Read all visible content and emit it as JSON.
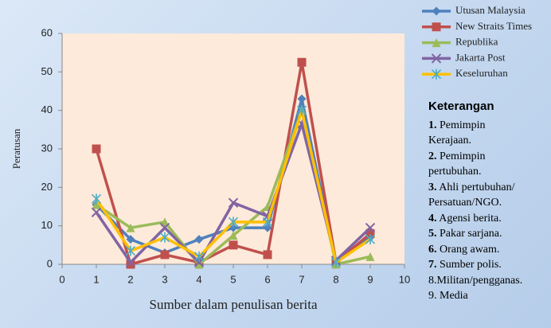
{
  "chart_data": {
    "type": "line",
    "xlabel": "Sumber  dalam penulisan berita",
    "ylabel": "Peratusan",
    "x": [
      1,
      2,
      3,
      4,
      5,
      6,
      7,
      8,
      9
    ],
    "xlim": [
      0,
      10
    ],
    "xticks": [
      0,
      1,
      2,
      3,
      4,
      5,
      6,
      7,
      8,
      9,
      10
    ],
    "ylim": [
      0,
      60
    ],
    "yticks": [
      0,
      10,
      20,
      30,
      40,
      50,
      60
    ],
    "legend": "upper right",
    "series": [
      {
        "name": "Utusan Malaysia",
        "color": "#4f81bd",
        "marker": "diamond",
        "values": [
          15.5,
          6.5,
          3,
          6.5,
          9.5,
          9.5,
          43,
          0.5,
          7
        ]
      },
      {
        "name": "New Straits Times",
        "color": "#c0504d",
        "marker": "square",
        "values": [
          30,
          0,
          2.5,
          0.5,
          5,
          2.5,
          52.5,
          0.5,
          8
        ]
      },
      {
        "name": "Republika",
        "color": "#9bbb59",
        "marker": "triangle",
        "values": [
          15.5,
          9.5,
          11,
          0,
          7.5,
          15,
          40,
          0,
          2
        ]
      },
      {
        "name": "Jakarta Post",
        "color": "#8064a2",
        "marker": "x",
        "values": [
          13.5,
          0.5,
          9.5,
          0.5,
          16,
          12.5,
          36.5,
          1,
          9.5
        ]
      },
      {
        "name": "Keseluruhan",
        "color": "#ffc000",
        "marker_color": "#4bacc6",
        "marker": "star",
        "values": [
          17,
          3.5,
          7,
          2,
          11,
          11,
          40,
          0.5,
          6.5
        ]
      }
    ],
    "notes": {
      "title": "Keterangan",
      "items": [
        {
          "number": "1.",
          "text": "Pemimpin\nKerajaan."
        },
        {
          "number": "2.",
          "text": "Pemimpin\npertubuhan."
        },
        {
          "number": "3.",
          "text": "Ahli pertubuhan/\nPersatuan/NGO."
        },
        {
          "number": "4.",
          "text": "Agensi berita."
        },
        {
          "number": "5.",
          "text": "Pakar sarjana."
        },
        {
          "number": "6.",
          "text": "Orang awam."
        },
        {
          "number": "7.",
          "text": "Sumber polis."
        },
        {
          "text": "8.Militan/pengganas."
        },
        {
          "text": "9. Media"
        }
      ]
    }
  }
}
